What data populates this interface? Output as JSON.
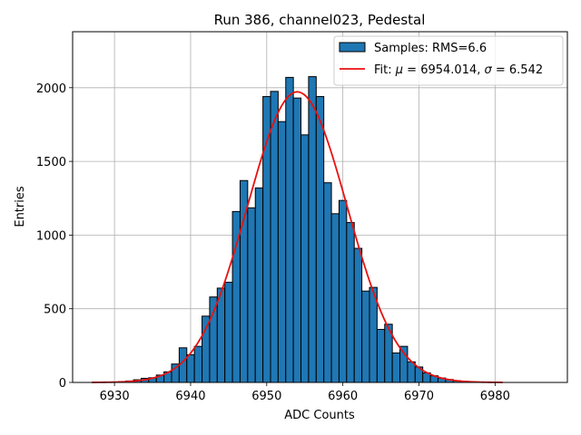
{
  "chart_data": {
    "type": "bar",
    "title": "Run 386, channel023, Pedestal",
    "xlabel": "ADC Counts",
    "ylabel": "Entries",
    "xlim": [
      6924.5,
      6989.5
    ],
    "ylim": [
      0,
      2380
    ],
    "xticks": [
      6930,
      6940,
      6950,
      6960,
      6970,
      6980
    ],
    "yticks": [
      0,
      500,
      1000,
      1500,
      2000
    ],
    "grid": true,
    "legend_position": "top-right",
    "histogram": {
      "name": "Samples: RMS=6.6",
      "color": "#1f77b4",
      "edge_color": "#000000",
      "bin_width": 1,
      "bin_centers": [
        6929,
        6930,
        6931,
        6932,
        6933,
        6934,
        6935,
        6936,
        6937,
        6938,
        6939,
        6940,
        6941,
        6942,
        6943,
        6944,
        6945,
        6946,
        6947,
        6948,
        6949,
        6950,
        6951,
        6952,
        6953,
        6954,
        6955,
        6956,
        6957,
        6958,
        6959,
        6960,
        6961,
        6962,
        6963,
        6964,
        6965,
        6966,
        6967,
        6968,
        6969,
        6970,
        6971,
        6972,
        6973,
        6974,
        6975,
        6976,
        6977,
        6978
      ],
      "values": [
        2,
        3,
        6,
        10,
        18,
        28,
        32,
        50,
        72,
        125,
        235,
        188,
        245,
        450,
        580,
        640,
        680,
        1160,
        1370,
        1185,
        1320,
        1940,
        1975,
        1770,
        2070,
        1930,
        1680,
        2075,
        1940,
        1355,
        1145,
        1235,
        1085,
        910,
        620,
        645,
        360,
        395,
        200,
        245,
        140,
        105,
        65,
        45,
        30,
        20,
        12,
        7,
        3,
        2
      ]
    },
    "fit": {
      "name": "Fit: μ = 6954.014, σ = 6.542",
      "label_prefix": "Fit: ",
      "mu_symbol": "μ",
      "sigma_symbol": "σ",
      "mu_text": " = 6954.014, ",
      "sigma_text": " = 6.542",
      "color": "#e8110f",
      "mu": 6954.014,
      "sigma": 6.542,
      "amplitude": 1972,
      "x_range": [
        6927,
        6981
      ]
    },
    "legend": {
      "samples_label": "Samples: RMS=6.6"
    }
  }
}
